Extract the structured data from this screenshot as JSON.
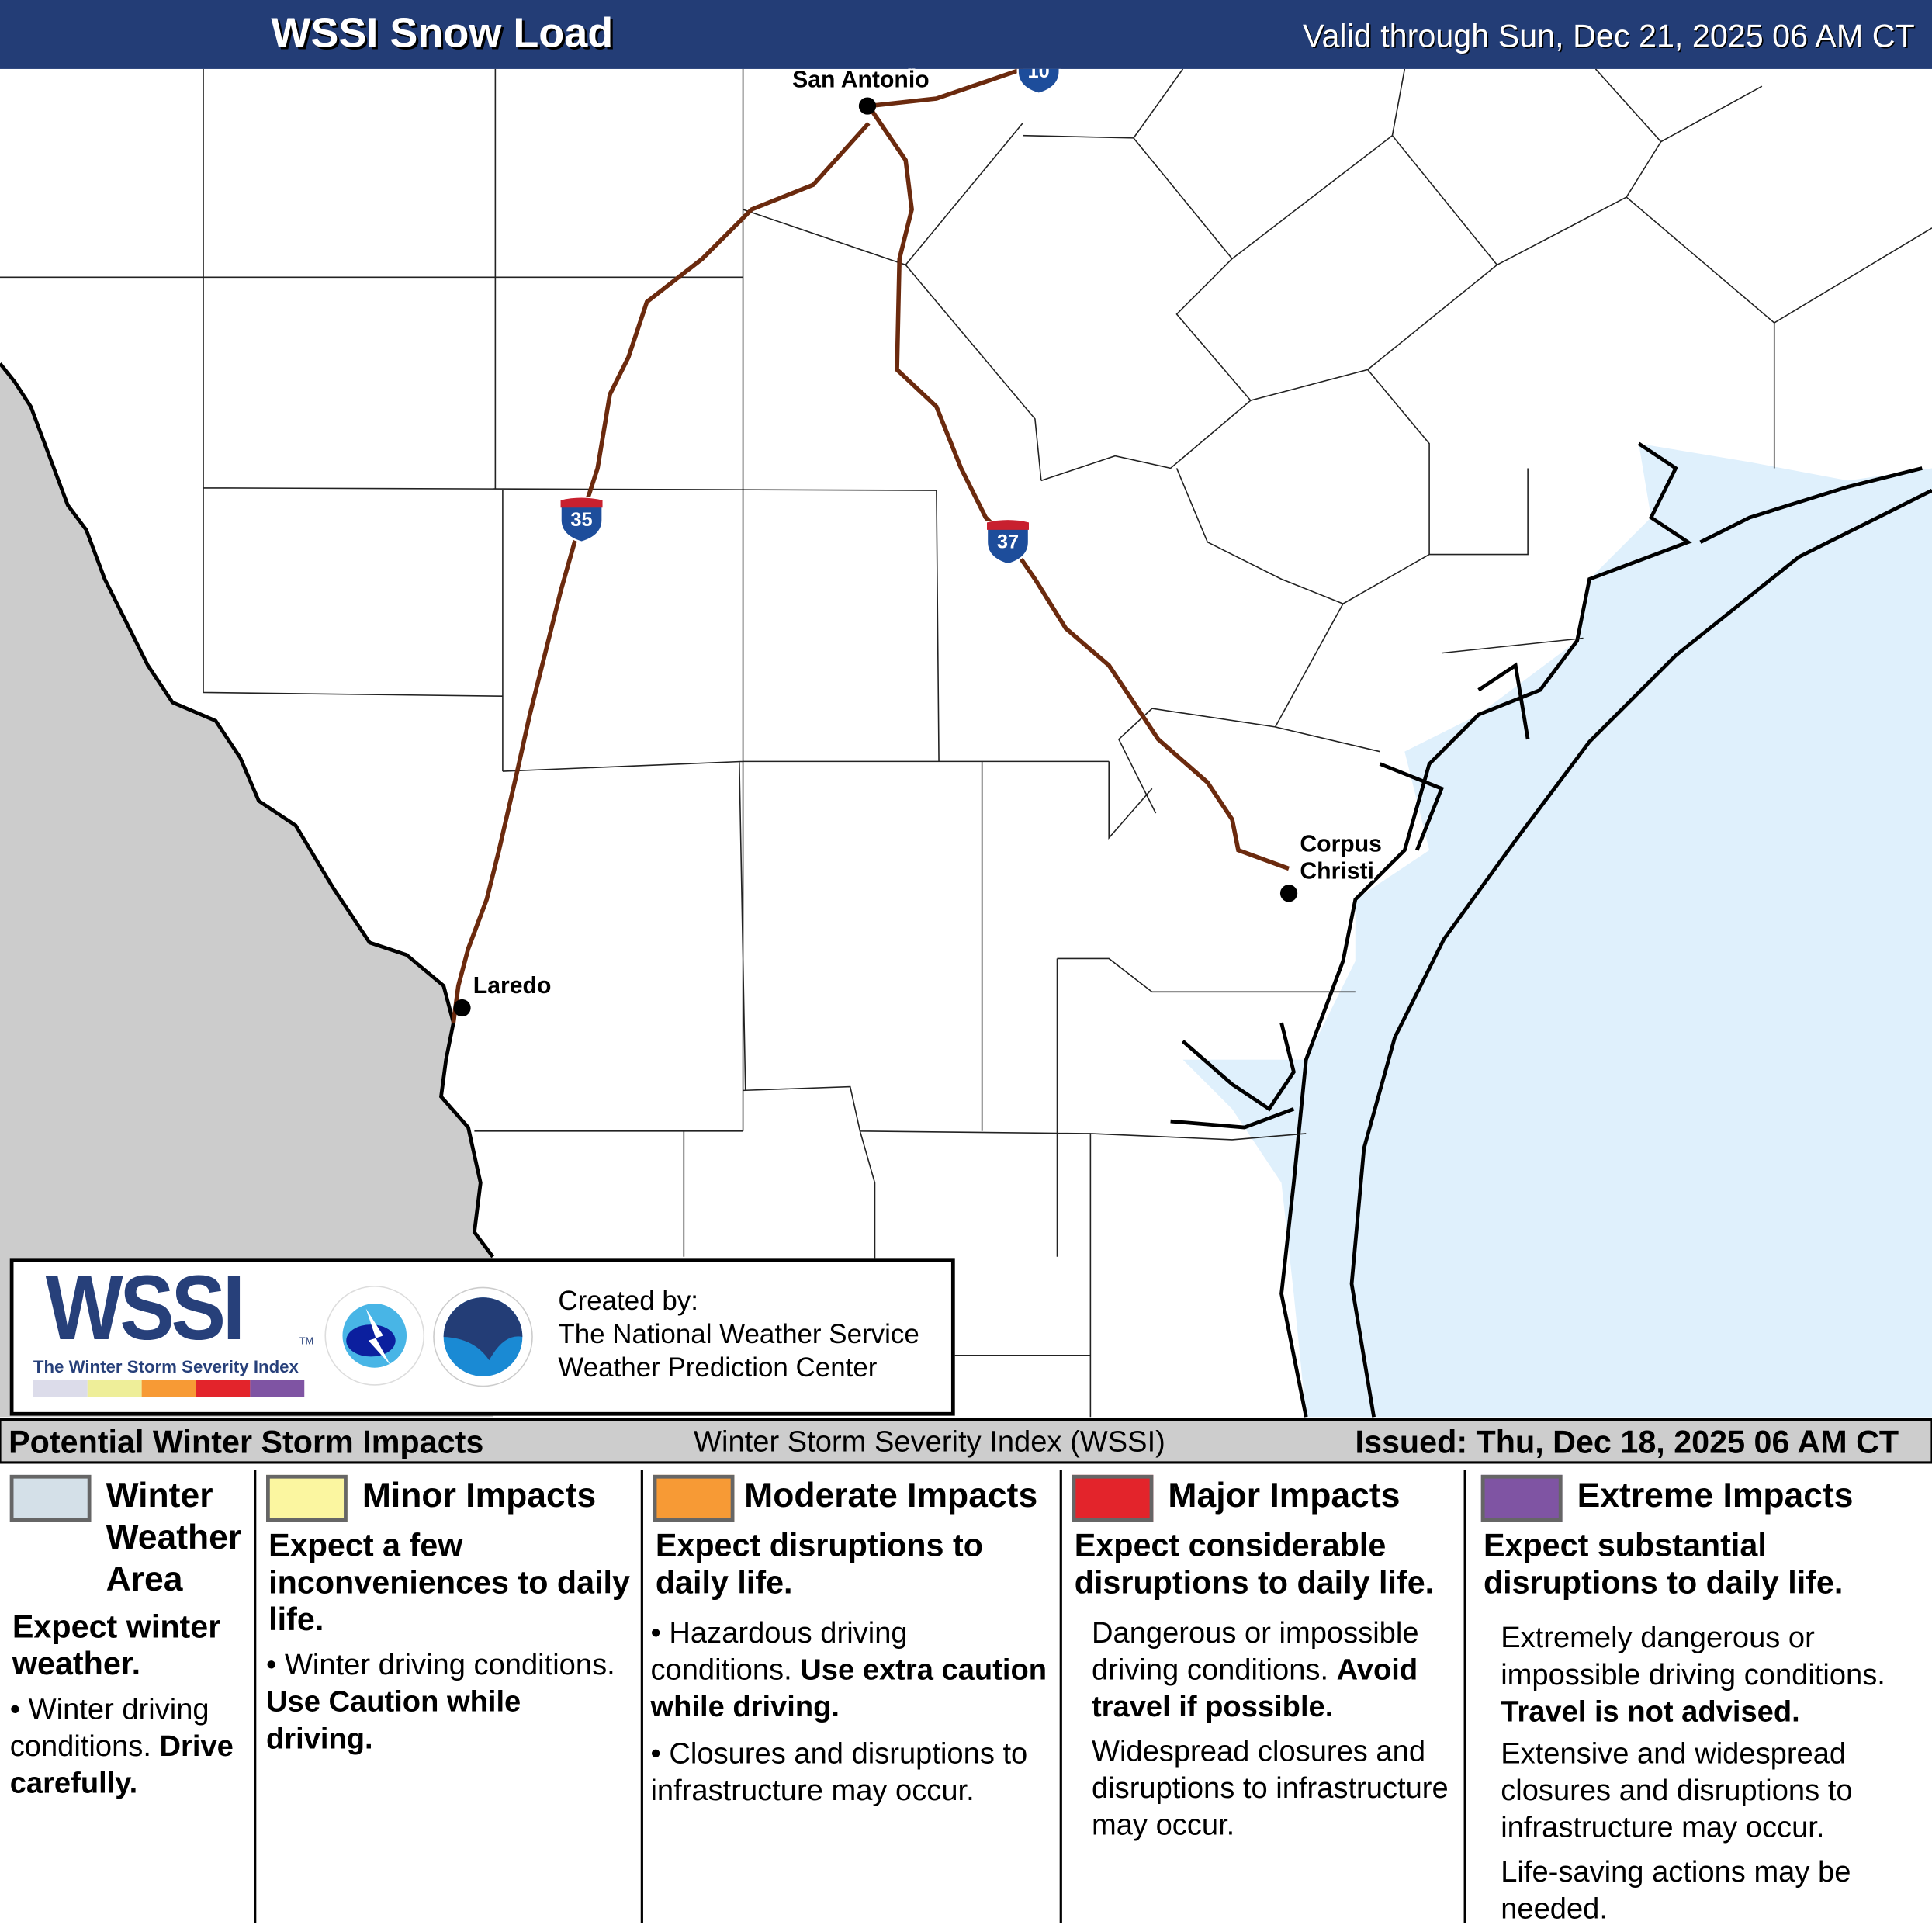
{
  "header": {
    "title": "WSSI Snow Load",
    "valid": "Valid through Sun, Dec 21, 2025 06 AM CT"
  },
  "map": {
    "cities": [
      {
        "name": "San Antonio"
      },
      {
        "name": "Laredo"
      },
      {
        "name": "Corpus"
      },
      {
        "name": "Christi"
      }
    ],
    "shields": [
      {
        "number": "35"
      },
      {
        "number": "37"
      },
      {
        "number": "10"
      }
    ],
    "colors": {
      "mexico": "#cccccc",
      "water": "#dff0fc",
      "highway": "#6b2a0e",
      "header": "#233d76"
    }
  },
  "logo": {
    "wssi": "WSSI",
    "tm": "TM",
    "subtitle": "The Winter Storm Severity Index",
    "scale_colors": [
      "#dcdcea",
      "#eeee99",
      "#f79a35",
      "#e3242b",
      "#7f54a3"
    ],
    "credit": [
      "Created by:",
      "The National Weather Service",
      "Weather Prediction Center"
    ]
  },
  "footer": {
    "left": "Potential Winter Storm Impacts",
    "middle": "Winter Storm Severity Index (WSSI)",
    "right": "Issued: Thu, Dec 18, 2025 06 AM CT"
  },
  "legend": [
    {
      "title": "Winter Weather Area",
      "color": "#d4e0e8",
      "summary": "Expect winter weather.",
      "b1": "Winter driving conditions.",
      "b1bold": "Drive carefully."
    },
    {
      "title": "Minor Impacts",
      "color": "#fbf6a0",
      "summary": "Expect a few inconveniences to daily life.",
      "b1": "Winter driving conditions.",
      "b1bold": "Use Caution while driving."
    },
    {
      "title": "Moderate Impacts",
      "color": "#f79a35",
      "summary": "Expect disruptions to daily life.",
      "b1": "Hazardous driving conditions.",
      "b1bold": "Use extra caution while driving.",
      "b2": "Closures and disruptions to infrastructure may occur."
    },
    {
      "title": "Major Impacts",
      "color": "#e3242b",
      "summary": "Expect considerable disruptions to daily life.",
      "b1": "Dangerous or impossible driving conditions.",
      "b1bold": "Avoid travel if possible.",
      "b2": "Widespread closures and disruptions to infrastructure may occur."
    },
    {
      "title": "Extreme Impacts",
      "color": "#7f54a3",
      "summary": "Expect substantial disruptions to daily life.",
      "b1": "Extremely dangerous or impossible driving conditions.",
      "b1bold": "Travel is not advised.",
      "b2": "Extensive and widespread closures and disruptions to infrastructure may occur.",
      "b3": "Life-saving actions may be needed."
    }
  ]
}
